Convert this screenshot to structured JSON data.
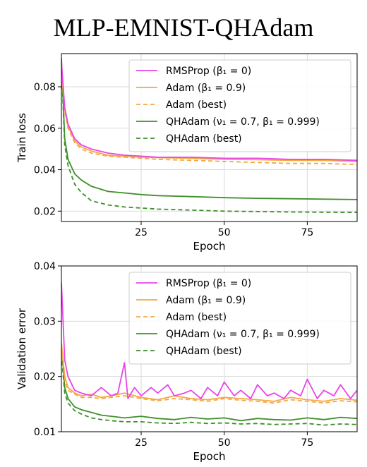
{
  "title": "MLP-EMNIST-QHAdam",
  "series_styles": [
    {
      "color": "#e845e8",
      "dash": "solid"
    },
    {
      "color": "#f5a742",
      "dash": "solid"
    },
    {
      "color": "#f5a742",
      "dash": "dashed"
    },
    {
      "color": "#3f8f2a",
      "dash": "solid"
    },
    {
      "color": "#3f8f2a",
      "dash": "dashed"
    }
  ],
  "chart_data": [
    {
      "type": "line",
      "xlabel": "Epoch",
      "ylabel": "Train loss",
      "xlim": [
        1,
        90
      ],
      "ylim": [
        0.015,
        0.096
      ],
      "xticks": [
        25,
        50,
        75
      ],
      "yticks": [
        0.02,
        0.04,
        0.06,
        0.08
      ],
      "ytick_labels": [
        "0.02",
        "0.04",
        "0.06",
        "0.08"
      ],
      "grid": true,
      "legend": "top-right",
      "series": [
        {
          "name": "RMSProp (β₁ = 0)",
          "x": [
            1,
            2,
            3,
            5,
            7,
            10,
            15,
            20,
            25,
            30,
            40,
            50,
            60,
            70,
            80,
            90
          ],
          "y": [
            0.092,
            0.07,
            0.062,
            0.055,
            0.052,
            0.05,
            0.048,
            0.047,
            0.0465,
            0.046,
            0.046,
            0.0455,
            0.0455,
            0.045,
            0.045,
            0.0445
          ]
        },
        {
          "name": "Adam (β₁ = 0.9)",
          "x": [
            1,
            2,
            3,
            5,
            7,
            10,
            15,
            20,
            25,
            30,
            40,
            50,
            60,
            70,
            80,
            90
          ],
          "y": [
            0.089,
            0.069,
            0.061,
            0.054,
            0.051,
            0.049,
            0.047,
            0.0465,
            0.046,
            0.0458,
            0.0455,
            0.045,
            0.0448,
            0.0445,
            0.0445,
            0.044
          ]
        },
        {
          "name": "Adam (best)",
          "x": [
            1,
            2,
            3,
            5,
            7,
            10,
            15,
            20,
            25,
            30,
            40,
            50,
            60,
            70,
            80,
            90
          ],
          "y": [
            0.088,
            0.068,
            0.06,
            0.053,
            0.05,
            0.048,
            0.0465,
            0.046,
            0.0455,
            0.045,
            0.0445,
            0.044,
            0.0435,
            0.043,
            0.043,
            0.0425
          ]
        },
        {
          "name": "QHAdam (ν₁ = 0.7, β₁ = 0.999)",
          "x": [
            1,
            2,
            3,
            5,
            7,
            10,
            15,
            20,
            25,
            30,
            40,
            50,
            60,
            70,
            80,
            90
          ],
          "y": [
            0.094,
            0.055,
            0.045,
            0.038,
            0.035,
            0.032,
            0.0295,
            0.0288,
            0.028,
            0.0275,
            0.027,
            0.0265,
            0.0262,
            0.026,
            0.0258,
            0.0256
          ]
        },
        {
          "name": "QHAdam (best)",
          "x": [
            1,
            2,
            3,
            5,
            7,
            10,
            15,
            20,
            25,
            30,
            40,
            50,
            60,
            70,
            80,
            90
          ],
          "y": [
            0.091,
            0.052,
            0.042,
            0.033,
            0.029,
            0.025,
            0.023,
            0.022,
            0.0215,
            0.021,
            0.0205,
            0.02,
            0.0198,
            0.0196,
            0.0195,
            0.0194
          ]
        }
      ]
    },
    {
      "type": "line",
      "xlabel": "Epoch",
      "ylabel": "Validation error",
      "xlim": [
        1,
        90
      ],
      "ylim": [
        0.01,
        0.04
      ],
      "xticks": [
        25,
        50,
        75
      ],
      "yticks": [
        0.01,
        0.02,
        0.03,
        0.04
      ],
      "ytick_labels": [
        "0.01",
        "0.02",
        "0.03",
        "0.04"
      ],
      "grid": true,
      "legend": "top-right",
      "series": [
        {
          "name": "RMSProp (β₁ = 0)",
          "x": [
            1,
            2,
            3,
            5,
            7,
            10,
            13,
            16,
            18,
            20,
            21,
            23,
            25,
            28,
            30,
            33,
            35,
            38,
            40,
            43,
            45,
            48,
            50,
            53,
            55,
            58,
            60,
            63,
            65,
            68,
            70,
            73,
            75,
            78,
            80,
            83,
            85,
            88,
            90
          ],
          "y": [
            0.037,
            0.023,
            0.02,
            0.0175,
            0.017,
            0.0165,
            0.018,
            0.0165,
            0.017,
            0.0225,
            0.016,
            0.018,
            0.0165,
            0.018,
            0.017,
            0.0185,
            0.0165,
            0.017,
            0.0175,
            0.016,
            0.018,
            0.0165,
            0.019,
            0.0165,
            0.0175,
            0.016,
            0.0185,
            0.0165,
            0.017,
            0.016,
            0.0175,
            0.0165,
            0.0195,
            0.016,
            0.0175,
            0.0165,
            0.0185,
            0.016,
            0.0175
          ]
        },
        {
          "name": "Adam (β₁ = 0.9)",
          "x": [
            1,
            2,
            3,
            5,
            7,
            10,
            13,
            16,
            20,
            25,
            30,
            35,
            40,
            45,
            50,
            55,
            60,
            65,
            70,
            75,
            80,
            85,
            90
          ],
          "y": [
            0.026,
            0.02,
            0.018,
            0.017,
            0.0165,
            0.0168,
            0.0162,
            0.0165,
            0.017,
            0.0162,
            0.0158,
            0.0165,
            0.016,
            0.0158,
            0.0162,
            0.016,
            0.0158,
            0.0155,
            0.0162,
            0.0158,
            0.0155,
            0.016,
            0.0157
          ]
        },
        {
          "name": "Adam (best)",
          "x": [
            1,
            2,
            3,
            5,
            7,
            10,
            13,
            16,
            20,
            25,
            30,
            35,
            40,
            45,
            50,
            55,
            60,
            65,
            70,
            75,
            80,
            85,
            90
          ],
          "y": [
            0.025,
            0.0195,
            0.0175,
            0.0168,
            0.0162,
            0.0162,
            0.016,
            0.0162,
            0.0165,
            0.016,
            0.0156,
            0.016,
            0.0158,
            0.0155,
            0.016,
            0.0157,
            0.0155,
            0.0152,
            0.0158,
            0.0155,
            0.0152,
            0.0156,
            0.0154
          ]
        },
        {
          "name": "QHAdam (ν₁ = 0.7, β₁ = 0.999)",
          "x": [
            1,
            2,
            3,
            5,
            7,
            10,
            13,
            16,
            20,
            25,
            30,
            35,
            40,
            45,
            50,
            55,
            60,
            65,
            70,
            75,
            80,
            85,
            90
          ],
          "y": [
            0.026,
            0.018,
            0.016,
            0.0145,
            0.014,
            0.0135,
            0.013,
            0.0128,
            0.0125,
            0.0128,
            0.0124,
            0.0122,
            0.0126,
            0.0123,
            0.0125,
            0.012,
            0.0124,
            0.0122,
            0.0121,
            0.0125,
            0.0122,
            0.0126,
            0.0124
          ]
        },
        {
          "name": "QHAdam (best)",
          "x": [
            1,
            2,
            3,
            5,
            7,
            10,
            13,
            16,
            20,
            25,
            30,
            35,
            40,
            45,
            50,
            55,
            60,
            65,
            70,
            75,
            80,
            85,
            90
          ],
          "y": [
            0.024,
            0.017,
            0.0152,
            0.0138,
            0.0132,
            0.0125,
            0.0122,
            0.012,
            0.0118,
            0.0118,
            0.0116,
            0.0115,
            0.0117,
            0.0115,
            0.0116,
            0.0114,
            0.0115,
            0.0113,
            0.0114,
            0.0115,
            0.0112,
            0.0114,
            0.0113
          ]
        }
      ]
    }
  ]
}
